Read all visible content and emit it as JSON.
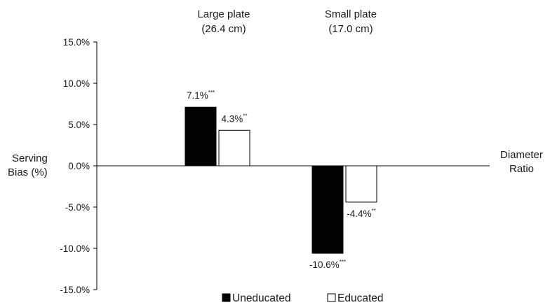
{
  "chart_data": {
    "type": "bar",
    "categories": [
      {
        "line1": "Large plate",
        "line2": "(26.4 cm)"
      },
      {
        "line1": "Small plate",
        "line2": "(17.0 cm)"
      }
    ],
    "series": [
      {
        "name": "Uneducated",
        "values": [
          7.1,
          -10.6
        ],
        "labels": [
          "7.1%",
          "-10.6%"
        ],
        "sig": [
          "***",
          "***"
        ],
        "color": "#000000"
      },
      {
        "name": "Educated",
        "values": [
          4.3,
          -4.4
        ],
        "labels": [
          "4.3%",
          "-4.4%"
        ],
        "sig": [
          "**",
          "**"
        ],
        "color": "#ffffff"
      }
    ],
    "ylabel": [
      "Serving",
      "Bias (%)"
    ],
    "xlabel": [
      "Diameter",
      "Ratio"
    ],
    "ylim": [
      -15,
      15
    ],
    "yticks": [
      15,
      10,
      5,
      0,
      -5,
      -10,
      -15
    ],
    "ytick_labels": [
      "15.0%",
      "10.0%",
      "5.0%",
      "0.0%",
      "-5.0%",
      "-10.0%",
      "-15.0%"
    ],
    "grid": false,
    "legend_position": "bottom"
  }
}
